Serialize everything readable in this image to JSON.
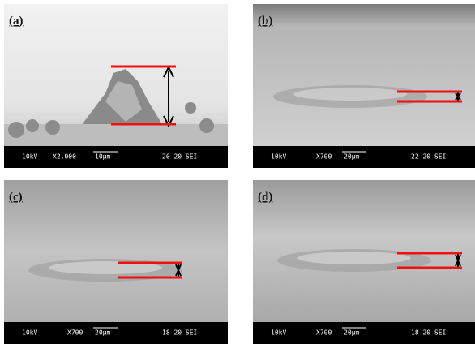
{
  "panels": [
    {
      "label": "(a)",
      "voltage": "10kV",
      "magnification": "X2,000",
      "scale": "10µm",
      "code": "20 20 SEI"
    },
    {
      "label": "(b)",
      "voltage": "10kV",
      "magnification": "X700",
      "scale": "20µm",
      "code": "22 20 SEI"
    },
    {
      "label": "(c)",
      "voltage": "10kV",
      "magnification": "X700",
      "scale": "20µm",
      "code": "18 20 SEI"
    },
    {
      "label": "(d)",
      "voltage": "10kV",
      "magnification": "X700",
      "scale": "20µm",
      "code": "18 20 SEI"
    }
  ]
}
